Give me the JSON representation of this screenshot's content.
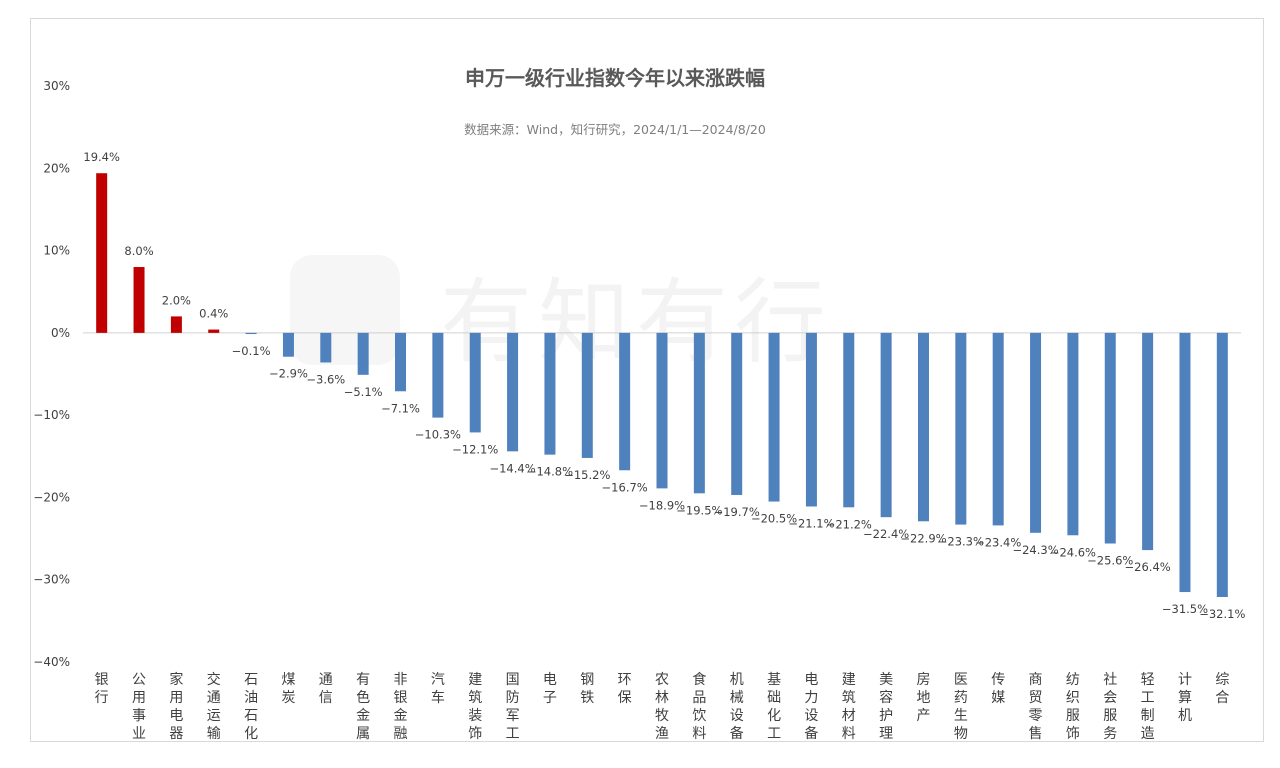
{
  "chart_data": {
    "type": "bar",
    "title": "申万一级行业指数今年以来涨跌幅",
    "subtitle": "数据来源：Wind，知行研究，2024/1/1—2024/8/20",
    "watermark": "有知有行",
    "ylim": [
      -40,
      30
    ],
    "yticks": [
      30,
      20,
      10,
      0,
      -10,
      -20,
      -30,
      -40
    ],
    "ytick_labels": [
      "30%",
      "20%",
      "10%",
      "0%",
      "−10%",
      "−20%",
      "−30%",
      "−40%"
    ],
    "grid": false,
    "legend": "none",
    "positive_color": "#c00000",
    "negative_color": "#4f81bd",
    "categories": [
      "银行",
      "公用事业",
      "家用电器",
      "交通运输",
      "石油石化",
      "煤炭",
      "通信",
      "有色金属",
      "非银金融",
      "汽车",
      "建筑装饰",
      "国防军工",
      "电子",
      "钢铁",
      "环保",
      "农林牧渔",
      "食品饮料",
      "机械设备",
      "基础化工",
      "电力设备",
      "建筑材料",
      "美容护理",
      "房地产",
      "医药生物",
      "传媒",
      "商贸零售",
      "纺织服饰",
      "社会服务",
      "轻工制造",
      "计算机",
      "综合"
    ],
    "values": [
      19.4,
      8.0,
      2.0,
      0.4,
      -0.1,
      -2.9,
      -3.6,
      -5.1,
      -7.1,
      -10.3,
      -12.1,
      -14.4,
      -14.8,
      -15.2,
      -16.7,
      -18.9,
      -19.5,
      -19.7,
      -20.5,
      -21.1,
      -21.2,
      -22.4,
      -22.9,
      -23.3,
      -23.4,
      -24.3,
      -24.6,
      -25.6,
      -26.4,
      -31.5,
      -32.1
    ],
    "value_labels": [
      "19.4%",
      "8.0%",
      "2.0%",
      "0.4%",
      "−0.1%",
      "−2.9%",
      "−3.6%",
      "−5.1%",
      "−7.1%",
      "−10.3%",
      "−12.1%",
      "−14.4%",
      "−14.8%",
      "−15.2%",
      "−16.7%",
      "−18.9%",
      "−19.5%",
      "−19.7%",
      "−20.5%",
      "−21.1%",
      "−21.2%",
      "−22.4%",
      "−22.9%",
      "−23.3%",
      "−23.4%",
      "−24.3%",
      "−24.6%",
      "−25.6%",
      "−26.4%",
      "−31.5%",
      "−32.1%"
    ]
  }
}
